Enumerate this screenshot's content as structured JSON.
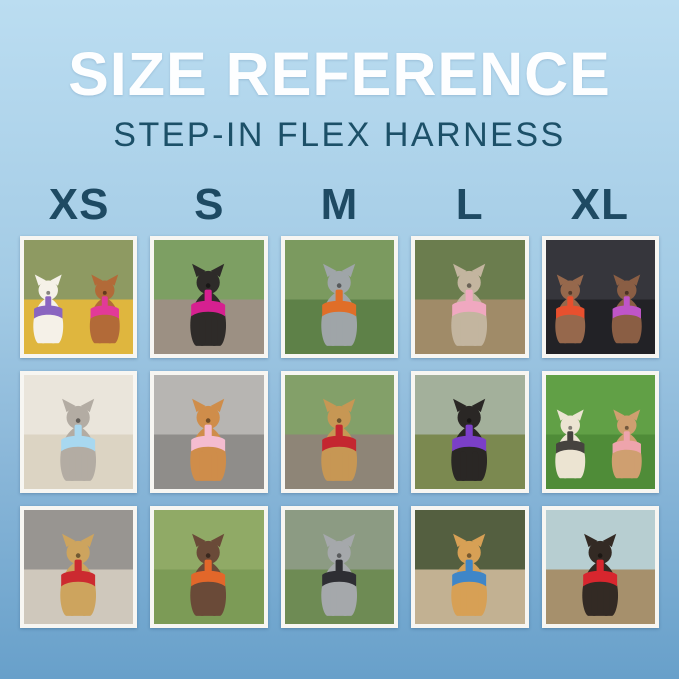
{
  "header": {
    "title": "SIZE REFERENCE",
    "subtitle": "STEP-IN FLEX HARNESS"
  },
  "sizes": [
    "XS",
    "S",
    "M",
    "L",
    "XL"
  ],
  "colors": {
    "bg_top": "#bbddf1",
    "bg_bottom": "#68a0ca",
    "title_text": "#fdfeff",
    "subtitle_text": "#1c5068",
    "size_label_text": "#1e4a63",
    "tile_frame": "#f7f6f2"
  },
  "grid": {
    "columns": [
      "XS",
      "S",
      "M",
      "L",
      "XL"
    ],
    "tiles": [
      {
        "size": "XS",
        "row": 1,
        "desc": "white bichon in purple harness and apricot poodle in pink harness on a colorful blanket",
        "scene": {
          "top": "#8e9a62",
          "bottom": "#dfb63e"
        },
        "dogs": [
          {
            "body": "#f5f1e8",
            "harness": "#8a65c0"
          },
          {
            "body": "#b26a38",
            "harness": "#e23a98"
          }
        ]
      },
      {
        "size": "S",
        "row": 1,
        "desc": "black min-pin mix standing on a rock in a hot pink harness",
        "scene": {
          "top": "#7d9f63",
          "bottom": "#9c9083"
        },
        "dogs": [
          {
            "body": "#2e2b29",
            "harness": "#d62090"
          }
        ]
      },
      {
        "size": "M",
        "row": 1,
        "desc": "blue merle pup in the park in an orange harness with leash",
        "scene": {
          "top": "#7b9a5f",
          "bottom": "#5e8148"
        },
        "dogs": [
          {
            "body": "#9fa5a8",
            "harness": "#e06e28"
          }
        ]
      },
      {
        "size": "L",
        "row": 1,
        "desc": "brindle sighthound sitting on a dirt path in a light pink harness",
        "scene": {
          "top": "#6b7d4e",
          "bottom": "#a08b68"
        },
        "dogs": [
          {
            "body": "#c3b59f",
            "harness": "#f0a8c0"
          }
        ]
      },
      {
        "size": "XL",
        "row": 1,
        "desc": "two german shorthaired pointers in a car in red and purple harnesses",
        "scene": {
          "top": "#36363c",
          "bottom": "#222226"
        },
        "dogs": [
          {
            "body": "#96684c",
            "harness": "#e8502e"
          },
          {
            "body": "#8a5e44",
            "harness": "#bf55c8"
          }
        ]
      },
      {
        "size": "XS",
        "row": 2,
        "desc": "gray and white shih tzu on a bed in a light blue harness",
        "scene": {
          "top": "#eae5db",
          "bottom": "#dcd4c3"
        },
        "dogs": [
          {
            "body": "#b3aca3",
            "harness": "#a8d8f0"
          }
        ]
      },
      {
        "size": "S",
        "row": 2,
        "desc": "golden retriever puppy sitting on pavement in a pink harness",
        "scene": {
          "top": "#b7b5b2",
          "bottom": "#8f8d8a"
        },
        "dogs": [
          {
            "body": "#cf8d4a",
            "harness": "#f4bcd0"
          }
        ]
      },
      {
        "size": "M",
        "row": 2,
        "desc": "tan chihuahua mix on a park bench in a red harness",
        "scene": {
          "top": "#83a069",
          "bottom": "#8e8577"
        },
        "dogs": [
          {
            "body": "#c79754",
            "harness": "#c42630"
          }
        ]
      },
      {
        "size": "L",
        "row": 2,
        "desc": "black lab puppy on autumn leaves in a purple harness",
        "scene": {
          "top": "#a3b09b",
          "bottom": "#7b8950"
        },
        "dogs": [
          {
            "body": "#2a2725",
            "harness": "#7b3fc8"
          }
        ]
      },
      {
        "size": "XL",
        "row": 2,
        "desc": "white doodle in a black harness and fawn french bulldog in a pink harness on grass",
        "scene": {
          "top": "#61a046",
          "bottom": "#4f8c38"
        },
        "dogs": [
          {
            "body": "#ece4d2",
            "harness": "#46433f"
          },
          {
            "body": "#cf9f70",
            "harness": "#eea4ac"
          }
        ]
      },
      {
        "size": "XS",
        "row": 3,
        "desc": "smiling tan yorkie mix on a shag rug in a red harness",
        "scene": {
          "top": "#989591",
          "bottom": "#cfc8bc"
        },
        "dogs": [
          {
            "body": "#cda45e",
            "harness": "#cc2a30"
          }
        ]
      },
      {
        "size": "S",
        "row": 3,
        "desc": "liver ticked pointer puppy lying in grass in an orange harness",
        "scene": {
          "top": "#90aa66",
          "bottom": "#7c9b56"
        },
        "dogs": [
          {
            "body": "#6a4a38",
            "harness": "#e2672a"
          }
        ]
      },
      {
        "size": "M",
        "row": 3,
        "desc": "blue merle border collie puppy in a black harness",
        "scene": {
          "top": "#8c9b83",
          "bottom": "#6e8b54"
        },
        "dogs": [
          {
            "body": "#a5a8ab",
            "harness": "#2e2e33"
          }
        ]
      },
      {
        "size": "L",
        "row": 3,
        "desc": "apricot doodle sitting on a stone ledge in a blue harness",
        "scene": {
          "top": "#545f40",
          "bottom": "#c2b192"
        },
        "dogs": [
          {
            "body": "#d7a055",
            "harness": "#3f86c8"
          }
        ]
      },
      {
        "size": "XL",
        "row": 3,
        "desc": "black and tan pup on a mountain overlook in a red harness with red leash",
        "scene": {
          "top": "#b7ced1",
          "bottom": "#a6906c"
        },
        "dogs": [
          {
            "body": "#332a24",
            "harness": "#d8262e"
          }
        ]
      }
    ]
  }
}
